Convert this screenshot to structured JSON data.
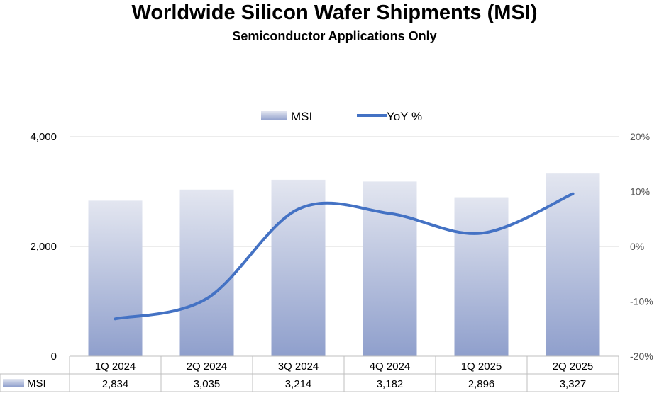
{
  "chart_data": {
    "type": "bar",
    "title": "Worldwide Silicon Wafer Shipments (MSI)",
    "subtitle": "Semiconductor Applications Only",
    "categories": [
      "1Q 2024",
      "2Q 2024",
      "3Q 2024",
      "4Q 2024",
      "1Q 2025",
      "2Q 2025"
    ],
    "series": [
      {
        "name": "MSI",
        "type": "bar",
        "axis": "left",
        "values": [
          2834,
          3035,
          3214,
          3182,
          2896,
          3327
        ],
        "value_labels": [
          "2,834",
          "3,035",
          "3,214",
          "3,182",
          "2,896",
          "3,327"
        ],
        "color_top": "#e3e6f0",
        "color_bottom": "#8f9fcc"
      },
      {
        "name": "YoY %",
        "type": "line",
        "axis": "right",
        "values": [
          -13.2,
          -9.5,
          6.8,
          6.0,
          2.4,
          9.6
        ],
        "color": "#4472c4"
      }
    ],
    "y_left": {
      "ylim": [
        0,
        4000
      ],
      "ticks": [
        0,
        2000,
        4000
      ],
      "tick_labels": [
        "0",
        "2,000",
        "4,000"
      ]
    },
    "y_right": {
      "ylim": [
        -20,
        20
      ],
      "ticks": [
        -20,
        -10,
        0,
        10,
        20
      ],
      "tick_labels": [
        "-20%",
        "-10%",
        "0%",
        "10%",
        "20%"
      ]
    },
    "grid": true,
    "legend": "top-center",
    "data_table": {
      "row_label": "MSI"
    }
  }
}
